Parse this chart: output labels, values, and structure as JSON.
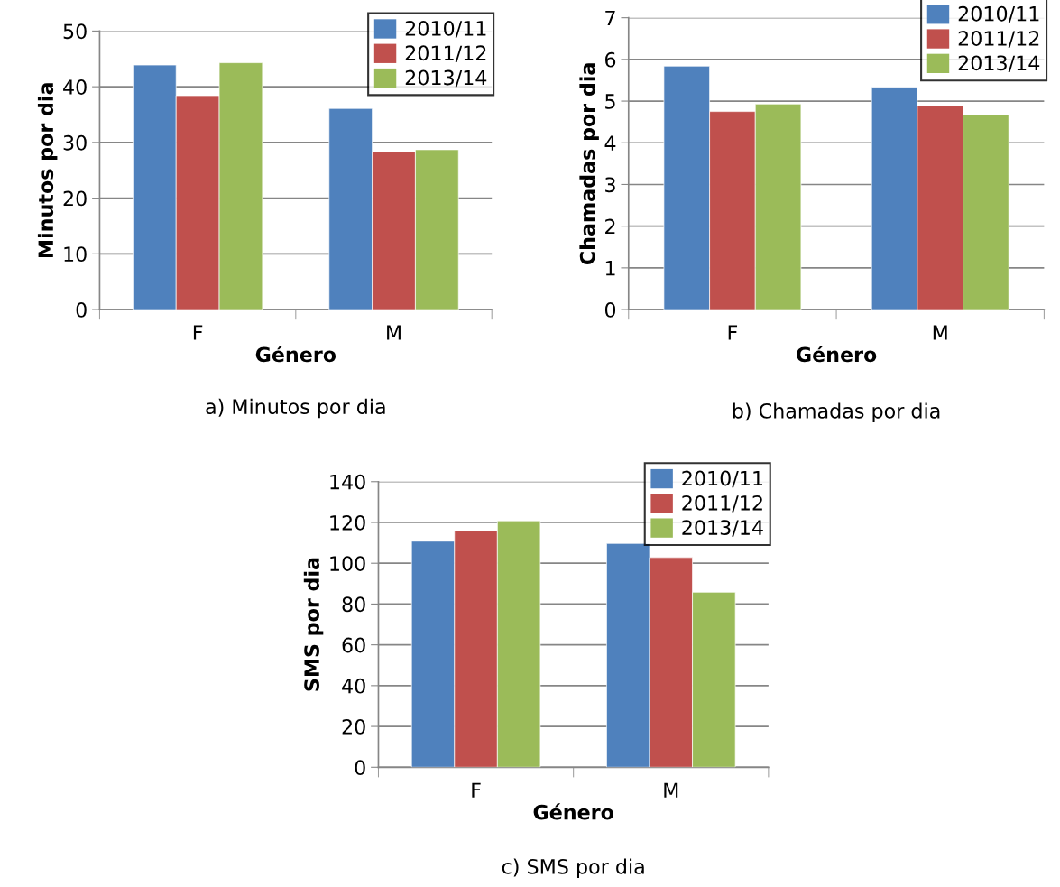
{
  "chart_data": [
    {
      "type": "bar",
      "categories": [
        "F",
        "M"
      ],
      "xlabel": "Género",
      "ylabel": "Minutos por dia",
      "ylim": [
        0,
        50
      ],
      "yticks": [
        0,
        10,
        20,
        30,
        40,
        50
      ],
      "grid": "y",
      "legend": "top right",
      "annotations": [
        "a) Minutos por dia"
      ],
      "series": [
        {
          "name": "2010/11",
          "color": "#4f81bd",
          "values": [
            43.9,
            36.1
          ]
        },
        {
          "name": "2011/12",
          "color": "#c0504d",
          "values": [
            38.4,
            28.3
          ]
        },
        {
          "name": "2013/14",
          "color": "#9bbb59",
          "values": [
            44.3,
            28.7
          ]
        }
      ]
    },
    {
      "type": "bar",
      "categories": [
        "F",
        "M"
      ],
      "xlabel": "Género",
      "ylabel": "Chamadas por dia",
      "ylim": [
        0,
        7
      ],
      "yticks": [
        0,
        1,
        2,
        3,
        4,
        5,
        6,
        7
      ],
      "grid": "y",
      "legend": "top right",
      "annotations": [
        "b) Chamadas por dia"
      ],
      "series": [
        {
          "name": "2010/11",
          "color": "#4f81bd",
          "values": [
            5.84,
            5.33
          ]
        },
        {
          "name": "2011/12",
          "color": "#c0504d",
          "values": [
            4.75,
            4.89
          ]
        },
        {
          "name": "2013/14",
          "color": "#9bbb59",
          "values": [
            4.93,
            4.67
          ]
        }
      ]
    },
    {
      "type": "bar",
      "categories": [
        "F",
        "M"
      ],
      "xlabel": "Género",
      "ylabel": "SMS por dia",
      "ylim": [
        0,
        140
      ],
      "yticks": [
        0,
        20,
        40,
        60,
        80,
        100,
        120,
        140
      ],
      "grid": "y",
      "legend": "top right",
      "annotations": [
        "c) SMS por dia"
      ],
      "series": [
        {
          "name": "2010/11",
          "color": "#4f81bd",
          "values": [
            110.8,
            109.7
          ]
        },
        {
          "name": "2011/12",
          "color": "#c0504d",
          "values": [
            115.9,
            102.8
          ]
        },
        {
          "name": "2013/14",
          "color": "#9bbb59",
          "values": [
            120.8,
            85.8
          ]
        }
      ]
    }
  ]
}
